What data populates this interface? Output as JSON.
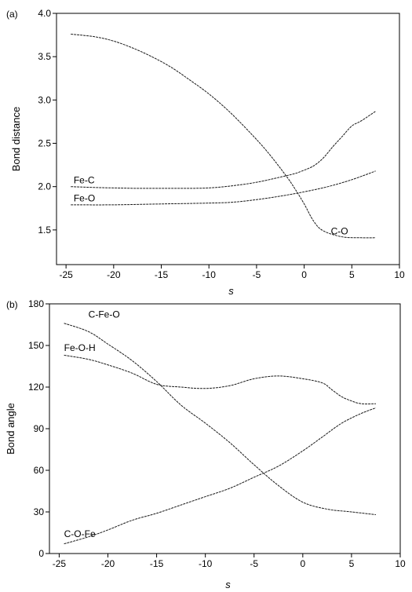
{
  "chart_data": [
    {
      "type": "line",
      "panel_label": "(a)",
      "xlabel": "s",
      "ylabel": "Bond distance",
      "xlim": [
        -26,
        10
      ],
      "ylim": [
        1.1,
        4.0
      ],
      "xticks": [
        -25,
        -20,
        -15,
        -10,
        -5,
        0,
        5,
        10
      ],
      "yticks": [
        1.5,
        2.0,
        2.5,
        3.0,
        3.5,
        4.0
      ],
      "ytick_labels": [
        "1.5",
        "2.0",
        "2.5",
        "3.0",
        "3.5",
        "4.0"
      ],
      "grid": false,
      "legend": "none",
      "series": [
        {
          "name": "Fe-C",
          "x": [
            -24.5,
            -22,
            -20,
            -17.5,
            -15,
            -12.5,
            -10,
            -7.5,
            -5,
            -2.5,
            -1,
            0,
            1,
            2,
            3,
            4,
            5,
            6,
            7.5
          ],
          "y": [
            2.0,
            1.99,
            1.985,
            1.98,
            1.98,
            1.98,
            1.985,
            2.01,
            2.05,
            2.11,
            2.15,
            2.19,
            2.24,
            2.33,
            2.46,
            2.58,
            2.7,
            2.76,
            2.87
          ]
        },
        {
          "name": "Fe-O",
          "x": [
            -24.5,
            -20,
            -15,
            -10,
            -7.5,
            -5,
            -2.5,
            0,
            2.5,
            5,
            7.5
          ],
          "y": [
            1.79,
            1.79,
            1.8,
            1.81,
            1.82,
            1.85,
            1.89,
            1.94,
            2.0,
            2.08,
            2.18
          ]
        },
        {
          "name": "C-O",
          "x": [
            -24.5,
            -22,
            -20,
            -18,
            -16,
            -14,
            -12,
            -10,
            -8,
            -6,
            -4,
            -2,
            -1,
            0,
            1,
            2,
            4,
            6,
            7.5
          ],
          "y": [
            3.76,
            3.73,
            3.68,
            3.6,
            3.5,
            3.38,
            3.23,
            3.07,
            2.88,
            2.66,
            2.42,
            2.14,
            1.98,
            1.8,
            1.6,
            1.49,
            1.42,
            1.41,
            1.41
          ]
        }
      ],
      "labels": [
        {
          "text": "Fe-C",
          "x": -24.2,
          "y": 2.04
        },
        {
          "text": "Fe-O",
          "x": -24.2,
          "y": 1.83
        },
        {
          "text": "C-O",
          "x": 2.8,
          "y": 1.45
        }
      ]
    },
    {
      "type": "line",
      "panel_label": "(b)",
      "xlabel": "s",
      "ylabel": "Bond angle",
      "xlim": [
        -26,
        10
      ],
      "ylim": [
        0,
        180
      ],
      "xticks": [
        -25,
        -20,
        -15,
        -10,
        -5,
        0,
        5,
        10
      ],
      "yticks": [
        0,
        30,
        60,
        90,
        120,
        150,
        180
      ],
      "ytick_labels": [
        "0",
        "30",
        "60",
        "90",
        "120",
        "150",
        "180"
      ],
      "grid": false,
      "legend": "none",
      "series": [
        {
          "name": "C-Fe-O",
          "x": [
            -24.5,
            -22,
            -20,
            -17.5,
            -15,
            -12.5,
            -10,
            -7.5,
            -5,
            -2.5,
            0,
            2.5,
            5,
            7.5
          ],
          "y": [
            166,
            160,
            151,
            139,
            124,
            107,
            94,
            80,
            64,
            49,
            37,
            32,
            30,
            28
          ]
        },
        {
          "name": "Fe-O-H",
          "x": [
            -24.5,
            -22,
            -20,
            -17.5,
            -15,
            -12.5,
            -10,
            -7.5,
            -5,
            -2.5,
            0,
            2,
            3,
            4,
            5,
            6,
            7.5
          ],
          "y": [
            143,
            140,
            136,
            130,
            122,
            120,
            119,
            121,
            126,
            128,
            126,
            123,
            118,
            113,
            110,
            108,
            108
          ]
        },
        {
          "name": "C-O-Fe",
          "x": [
            -24.5,
            -22,
            -20,
            -17.5,
            -15,
            -12.5,
            -10,
            -7.5,
            -5,
            -2.5,
            0,
            2,
            4,
            6,
            7.5
          ],
          "y": [
            7,
            12,
            17,
            24,
            29,
            35,
            41,
            47,
            55,
            63,
            74,
            84,
            94,
            101,
            105
          ]
        }
      ],
      "labels": [
        {
          "text": "C-Fe-O",
          "x": -22,
          "y": 170
        },
        {
          "text": "Fe-O-H",
          "x": -24.5,
          "y": 146
        },
        {
          "text": "C-O-Fe",
          "x": -24.5,
          "y": 12
        }
      ]
    }
  ]
}
